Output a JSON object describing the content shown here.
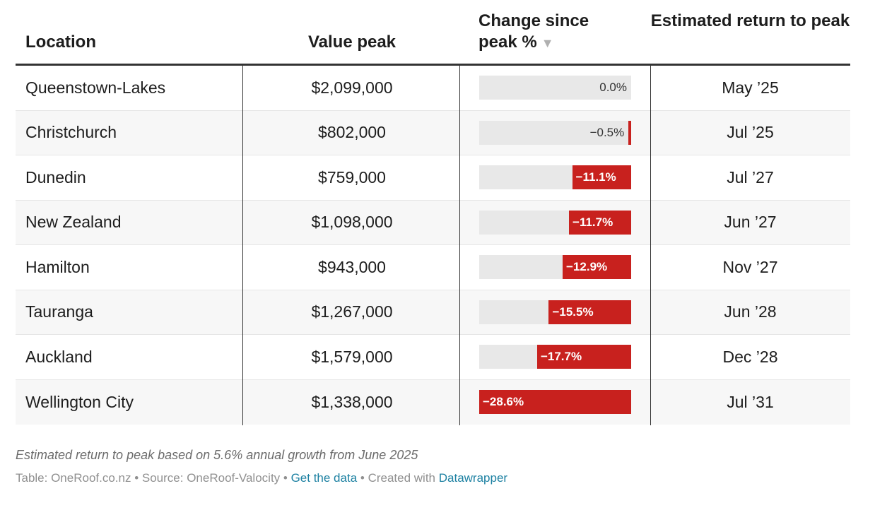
{
  "headers": {
    "location": "Location",
    "value_peak": "Value peak",
    "change": "Change since peak %",
    "return": "Estimated return to peak"
  },
  "chart_data": {
    "type": "table",
    "columns": [
      "Location",
      "Value peak",
      "Change since peak %",
      "Estimated return to peak"
    ],
    "rows": [
      {
        "location": "Queenstown-Lakes",
        "value_peak": "$2,099,000",
        "change": 0.0,
        "change_label": "0.0%",
        "return": "May ’25"
      },
      {
        "location": "Christchurch",
        "value_peak": "$802,000",
        "change": -0.5,
        "change_label": "−0.5%",
        "return": "Jul ’25"
      },
      {
        "location": "Dunedin",
        "value_peak": "$759,000",
        "change": -11.1,
        "change_label": "−11.1%",
        "return": "Jul ’27"
      },
      {
        "location": "New Zealand",
        "value_peak": "$1,098,000",
        "change": -11.7,
        "change_label": "−11.7%",
        "return": "Jun ’27"
      },
      {
        "location": "Hamilton",
        "value_peak": "$943,000",
        "change": -12.9,
        "change_label": "−12.9%",
        "return": "Nov ’27"
      },
      {
        "location": "Tauranga",
        "value_peak": "$1,267,000",
        "change": -15.5,
        "change_label": "−15.5%",
        "return": "Jun ’28"
      },
      {
        "location": "Auckland",
        "value_peak": "$1,579,000",
        "change": -17.7,
        "change_label": "−17.7%",
        "return": "Dec ’28"
      },
      {
        "location": "Wellington City",
        "value_peak": "$1,338,000",
        "change": -28.6,
        "change_label": "−28.6%",
        "return": "Jul ’31"
      }
    ],
    "bar_color": "#c8211e",
    "track_color": "#e8e8e8",
    "sorted_by": "Change since peak %"
  },
  "notes": "Estimated return to peak based on 5.6% annual growth from June 2025",
  "footer": {
    "table_credit": "Table: OneRoof.co.nz",
    "separator": " • ",
    "source": "Source: OneRoof-Valocity",
    "get_data": "Get the data",
    "created_with": "Created with ",
    "tool": "Datawrapper"
  },
  "icons": {
    "sort": "triangle-down-icon"
  }
}
